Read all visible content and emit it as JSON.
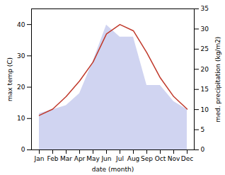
{
  "chart_data": {
    "type": "line",
    "categories": [
      "Jan",
      "Feb",
      "Mar",
      "Apr",
      "May",
      "Jun",
      "Jul",
      "Aug",
      "Sep",
      "Oct",
      "Nov",
      "Dec"
    ],
    "xlabel": "date (month)",
    "ylabel": "max temp (C)",
    "y2label": "med. precipitation (kg/m2)",
    "series": [
      {
        "type": "area",
        "axis": "y2",
        "color": "#b0b8e8",
        "values": [
          9,
          10,
          11,
          14,
          22,
          31,
          28,
          28,
          16,
          16,
          12,
          10
        ]
      },
      {
        "type": "line",
        "color": "#c0392b",
        "values": [
          11,
          13,
          17,
          22,
          28,
          37,
          40,
          38,
          31,
          23,
          17,
          13
        ]
      }
    ],
    "ylim": [
      0,
      45
    ],
    "yticks": [
      0,
      10,
      20,
      30,
      40
    ],
    "y2lim": [
      0,
      35
    ],
    "y2ticks": [
      0,
      5,
      10,
      15,
      20,
      25,
      30,
      35
    ],
    "grid": false
  }
}
